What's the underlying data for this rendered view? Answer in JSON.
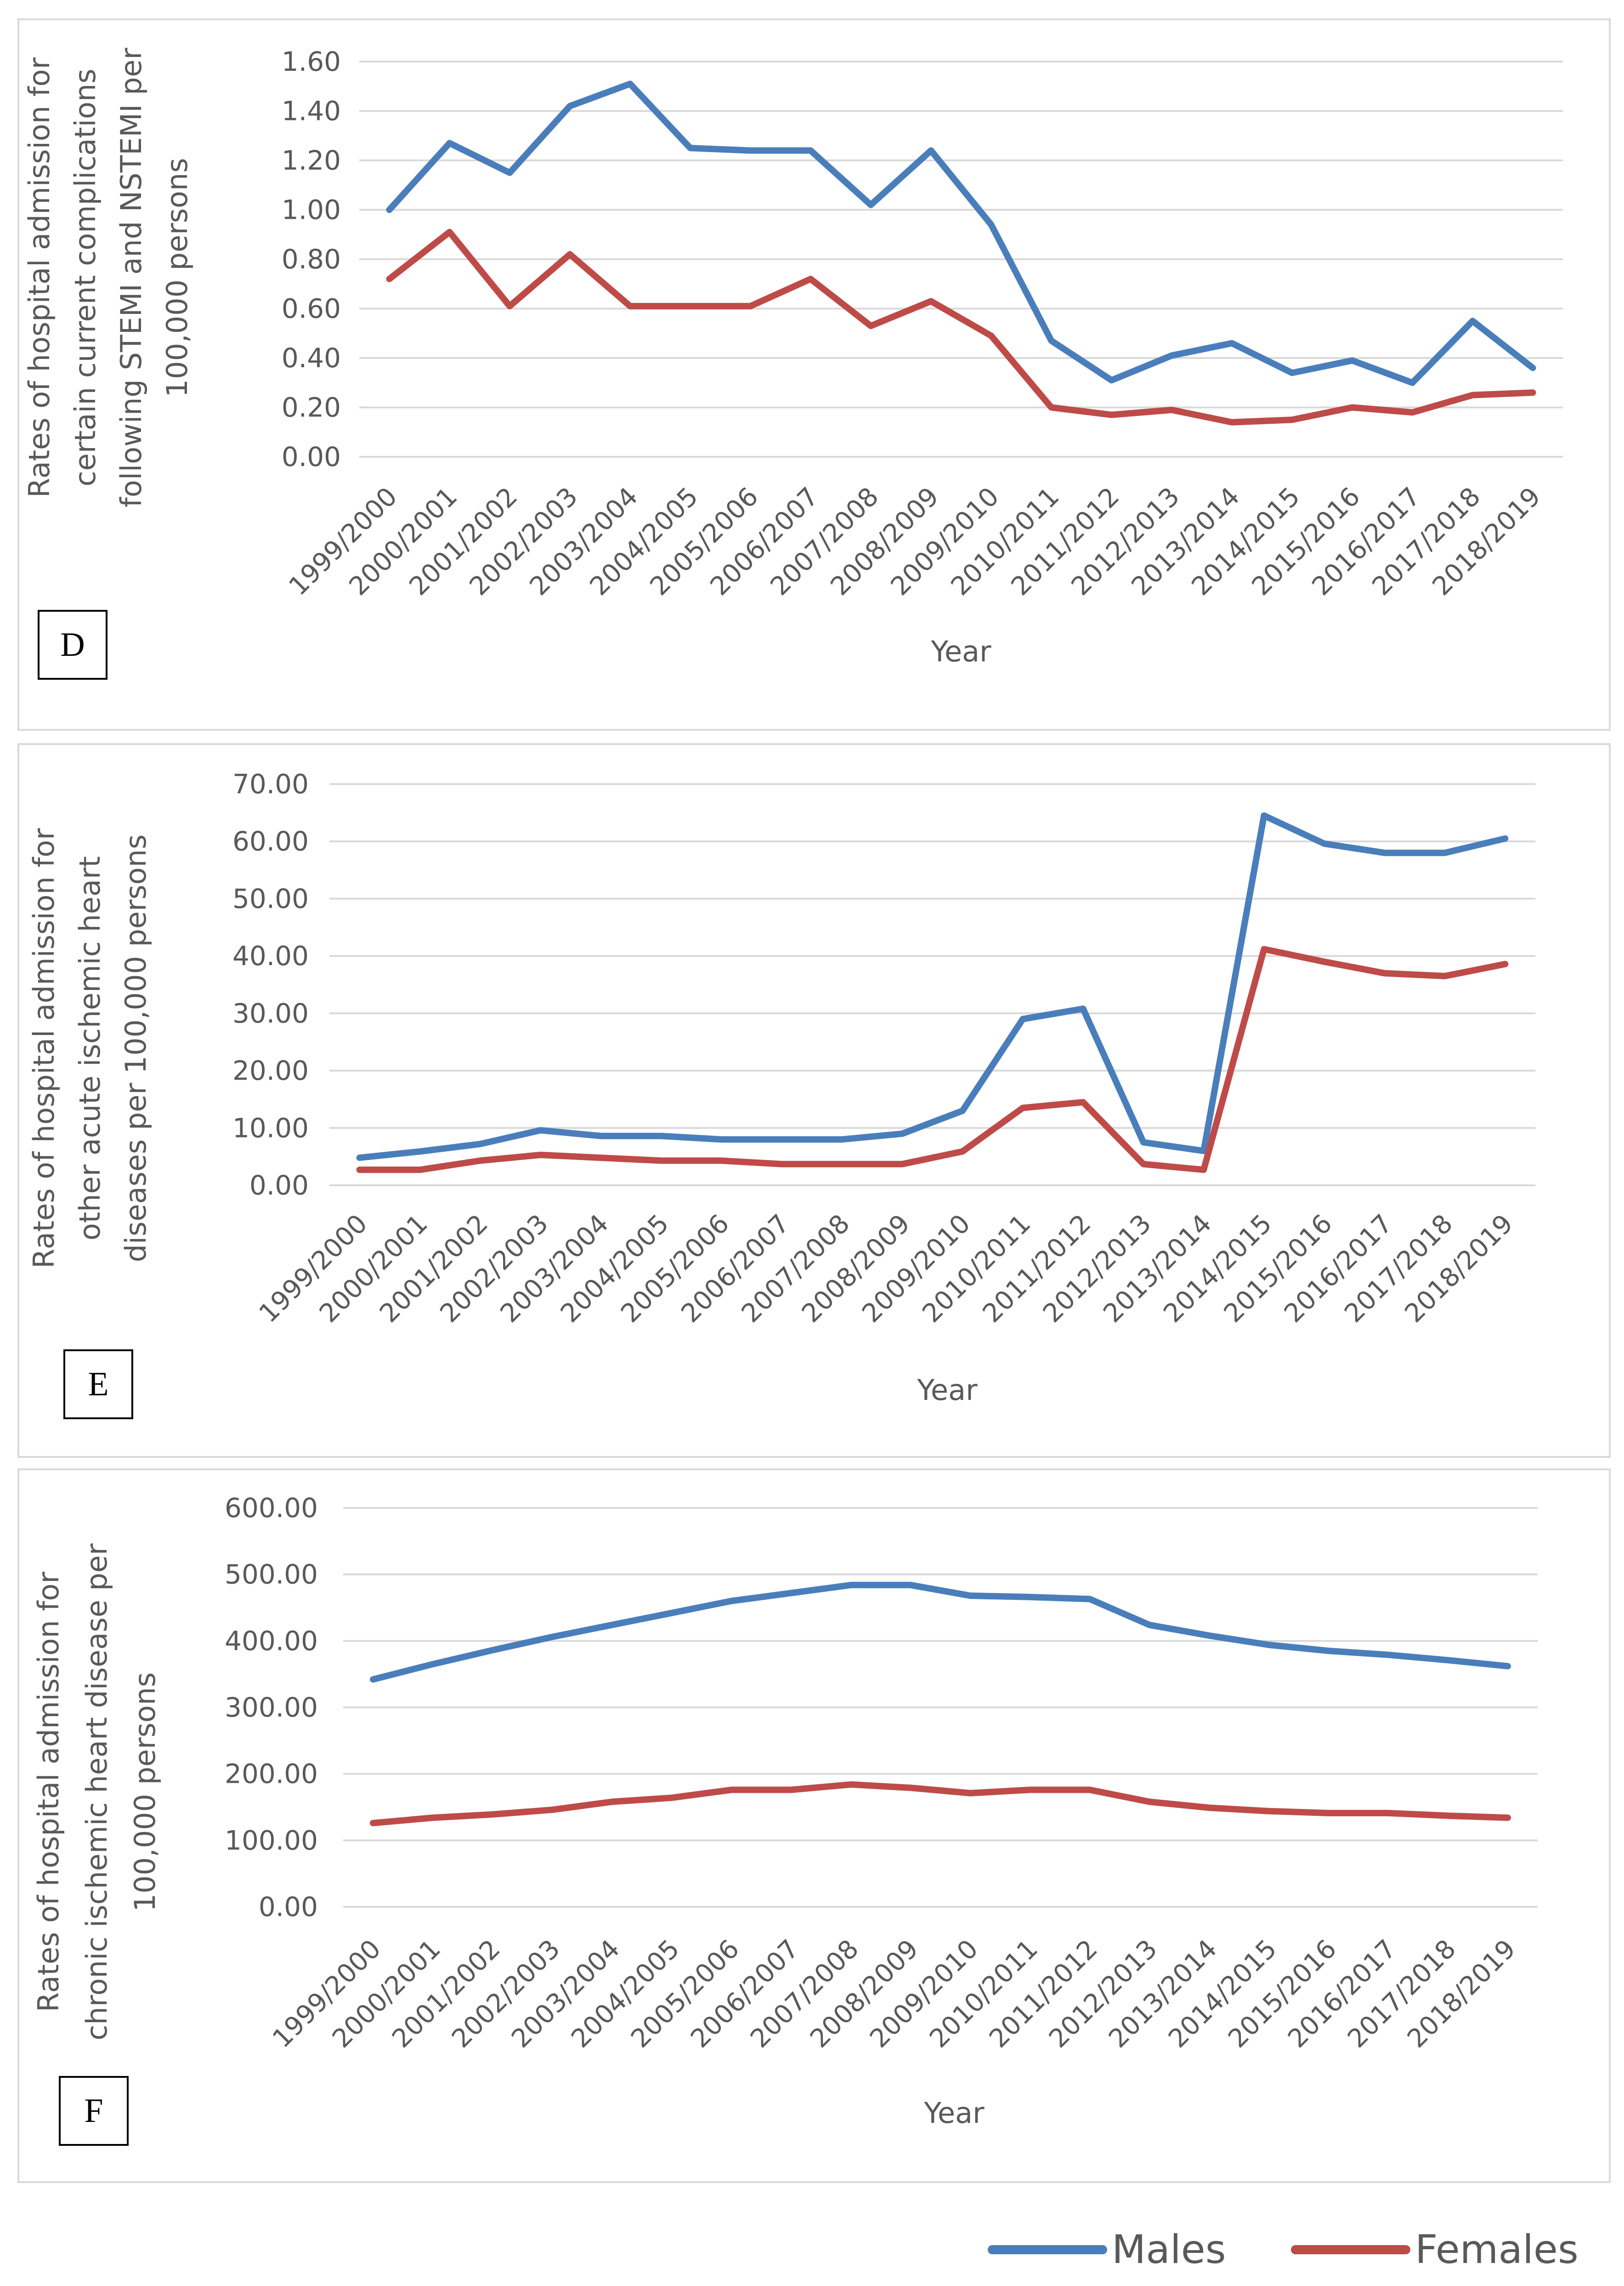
{
  "colors": {
    "males": "#4a7ebb",
    "females": "#be4b48",
    "grid": "#d9d9d9",
    "text": "#595959"
  },
  "legend": {
    "males": "Males",
    "females": "Females"
  },
  "chart_data": [
    {
      "panel": "D",
      "type": "line",
      "title": "",
      "xlabel": "Year",
      "ylabel_lines": [
        "Rates of hospital admission for",
        "certain current complications",
        "following STEMI and NSTEMI per",
        "100,000 persons"
      ],
      "ylim": [
        0,
        1.6
      ],
      "yticks": [
        0,
        0.2,
        0.4,
        0.6,
        0.8,
        1.0,
        1.2,
        1.4,
        1.6
      ],
      "ytick_labels": [
        "0.00",
        "0.20",
        "0.40",
        "0.60",
        "0.80",
        "1.00",
        "1.20",
        "1.40",
        "1.60"
      ],
      "categories": [
        "1999/2000",
        "2000/2001",
        "2001/2002",
        "2002/2003",
        "2003/2004",
        "2004/2005",
        "2005/2006",
        "2006/2007",
        "2007/2008",
        "2008/2009",
        "2009/2010",
        "2010/2011",
        "2011/2012",
        "2012/2013",
        "2013/2014",
        "2014/2015",
        "2015/2016",
        "2016/2017",
        "2017/2018",
        "2018/2019"
      ],
      "series": [
        {
          "name": "Males",
          "values": [
            1.0,
            1.27,
            1.15,
            1.42,
            1.51,
            1.25,
            1.24,
            1.24,
            1.02,
            1.24,
            0.94,
            0.47,
            0.31,
            0.41,
            0.46,
            0.34,
            0.39,
            0.3,
            0.55,
            0.36
          ]
        },
        {
          "name": "Females",
          "values": [
            0.72,
            0.91,
            0.61,
            0.82,
            0.61,
            0.61,
            0.61,
            0.72,
            0.53,
            0.63,
            0.49,
            0.2,
            0.17,
            0.19,
            0.14,
            0.15,
            0.2,
            0.18,
            0.25,
            0.26
          ]
        }
      ]
    },
    {
      "panel": "E",
      "type": "line",
      "title": "",
      "xlabel": "Year",
      "ylabel_lines": [
        "Rates of hospital admission for",
        "other acute ischemic heart",
        "diseases per 100,000 persons"
      ],
      "ylim": [
        0,
        70
      ],
      "yticks": [
        0,
        10,
        20,
        30,
        40,
        50,
        60,
        70
      ],
      "ytick_labels": [
        "0.00",
        "10.00",
        "20.00",
        "30.00",
        "40.00",
        "50.00",
        "60.00",
        "70.00"
      ],
      "categories": [
        "1999/2000",
        "2000/2001",
        "2001/2002",
        "2002/2003",
        "2003/2004",
        "2004/2005",
        "2005/2006",
        "2006/2007",
        "2007/2008",
        "2008/2009",
        "2009/2010",
        "2010/2011",
        "2011/2012",
        "2012/2013",
        "2013/2014",
        "2014/2015",
        "2015/2016",
        "2016/2017",
        "2017/2018",
        "2018/2019"
      ],
      "series": [
        {
          "name": "Males",
          "values": [
            4.8,
            5.9,
            7.2,
            9.6,
            8.6,
            8.6,
            8.0,
            8.0,
            8.0,
            9.0,
            13.0,
            29.0,
            30.8,
            7.5,
            6.0,
            64.5,
            59.6,
            58.0,
            58.0,
            60.5
          ]
        },
        {
          "name": "Females",
          "values": [
            2.7,
            2.7,
            4.3,
            5.3,
            4.8,
            4.3,
            4.3,
            3.7,
            3.7,
            3.7,
            5.9,
            13.5,
            14.5,
            3.7,
            2.7,
            41.2,
            39.0,
            37.0,
            36.5,
            38.6
          ]
        }
      ]
    },
    {
      "panel": "F",
      "type": "line",
      "title": "",
      "xlabel": "Year",
      "ylabel_lines": [
        "Rates of hospital admission for",
        "chronic ischemic heart disease per",
        "100,000 persons"
      ],
      "ylim": [
        0,
        600
      ],
      "yticks": [
        0,
        100,
        200,
        300,
        400,
        500,
        600
      ],
      "ytick_labels": [
        "0.00",
        "100.00",
        "200.00",
        "300.00",
        "400.00",
        "500.00",
        "600.00"
      ],
      "categories": [
        "1999/2000",
        "2000/2001",
        "2001/2002",
        "2002/2003",
        "2003/2004",
        "2004/2005",
        "2005/2006",
        "2006/2007",
        "2007/2008",
        "2008/2009",
        "2009/2010",
        "2010/2011",
        "2011/2012",
        "2012/2013",
        "2013/2014",
        "2014/2015",
        "2015/2016",
        "2016/2017",
        "2017/2018",
        "2018/2019"
      ],
      "series": [
        {
          "name": "Males",
          "values": [
            342,
            365,
            386,
            406,
            424,
            442,
            460,
            472,
            484,
            484,
            468,
            466,
            463,
            424,
            408,
            394,
            385,
            379,
            371,
            362
          ]
        },
        {
          "name": "Females",
          "values": [
            126,
            134,
            139,
            146,
            158,
            164,
            176,
            176,
            184,
            179,
            171,
            176,
            176,
            158,
            149,
            144,
            141,
            141,
            137,
            134
          ]
        }
      ]
    }
  ]
}
